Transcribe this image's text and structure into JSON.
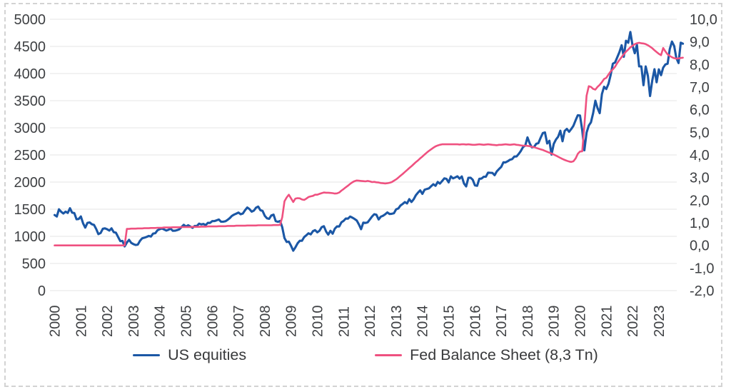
{
  "chart_data": {
    "type": "line",
    "title": "",
    "grid": true,
    "legend_position": "bottom",
    "x": {
      "unit": "month",
      "start_year": 2000,
      "tick_labels": [
        "2000",
        "2001",
        "2002",
        "2003",
        "2004",
        "2005",
        "2006",
        "2007",
        "2008",
        "2009",
        "2010",
        "2011",
        "2012",
        "2013",
        "2014",
        "2015",
        "2016",
        "2017",
        "2018",
        "2019",
        "2020",
        "2021",
        "2022",
        "2023"
      ]
    },
    "left_axis": {
      "min": 0,
      "max": 5000,
      "step": 500,
      "tick_labels": [
        "5000",
        "4500",
        "4000",
        "3500",
        "3000",
        "2500",
        "2000",
        "1500",
        "1000",
        "500",
        "0"
      ]
    },
    "right_axis": {
      "min": -2,
      "max": 10,
      "step": 1,
      "tick_labels": [
        "10,0",
        "9,0",
        "8,0",
        "7,0",
        "6,0",
        "5,0",
        "4,0",
        "3,0",
        "2,0",
        "1,0",
        "0,0",
        "-1,0",
        "-2,0"
      ]
    },
    "series": [
      {
        "name": "US equities",
        "axis": "left",
        "color": "#1b57a5",
        "values": [
          1394,
          1366,
          1499,
          1452,
          1421,
          1455,
          1431,
          1518,
          1437,
          1429,
          1315,
          1320,
          1366,
          1240,
          1160,
          1249,
          1256,
          1224,
          1211,
          1134,
          1041,
          1060,
          1139,
          1148,
          1130,
          1107,
          1147,
          1077,
          1067,
          990,
          912,
          916,
          815,
          886,
          936,
          880,
          856,
          841,
          848,
          917,
          964,
          975,
          990,
          1008,
          996,
          1051,
          1058,
          1112,
          1131,
          1145,
          1126,
          1107,
          1121,
          1141,
          1102,
          1104,
          1114,
          1130,
          1174,
          1212,
          1181,
          1204,
          1181,
          1157,
          1192,
          1191,
          1234,
          1220,
          1229,
          1207,
          1249,
          1248,
          1280,
          1281,
          1295,
          1311,
          1270,
          1270,
          1277,
          1304,
          1336,
          1378,
          1401,
          1418,
          1438,
          1407,
          1421,
          1482,
          1531,
          1503,
          1455,
          1474,
          1527,
          1549,
          1481,
          1468,
          1379,
          1331,
          1323,
          1386,
          1400,
          1280,
          1267,
          1283,
          1166,
          969,
          896,
          903,
          826,
          735,
          798,
          873,
          919,
          919,
          987,
          1021,
          1057,
          1036,
          1096,
          1115,
          1074,
          1104,
          1169,
          1187,
          1089,
          1031,
          1102,
          1049,
          1141,
          1183,
          1181,
          1258,
          1286,
          1327,
          1326,
          1364,
          1345,
          1321,
          1292,
          1219,
          1131,
          1253,
          1247,
          1258,
          1312,
          1366,
          1408,
          1398,
          1310,
          1362,
          1379,
          1407,
          1441,
          1412,
          1416,
          1426,
          1498,
          1515,
          1569,
          1598,
          1631,
          1606,
          1686,
          1633,
          1682,
          1757,
          1806,
          1848,
          1783,
          1859,
          1872,
          1884,
          1924,
          1960,
          1931,
          2003,
          1972,
          2018,
          2068,
          2059,
          1995,
          2105,
          2068,
          2086,
          2107,
          2063,
          2104,
          1972,
          1920,
          2079,
          2080,
          2044,
          1940,
          1932,
          2060,
          2065,
          2097,
          2099,
          2174,
          2171,
          2168,
          2126,
          2199,
          2239,
          2279,
          2364,
          2363,
          2384,
          2412,
          2423,
          2470,
          2472,
          2519,
          2575,
          2648,
          2674,
          2824,
          2714,
          2641,
          2648,
          2705,
          2718,
          2816,
          2902,
          2914,
          2712,
          2760,
          2507,
          2704,
          2784,
          2834,
          2946,
          2752,
          2942,
          2980,
          2926,
          2977,
          3038,
          3141,
          3231,
          3226,
          2954,
          2585,
          2912,
          3044,
          3100,
          3271,
          3500,
          3363,
          3270,
          3622,
          3756,
          3714,
          3811,
          3973,
          4181,
          4204,
          4298,
          4395,
          4523,
          4308,
          4605,
          4567,
          4766,
          4516,
          4374,
          4530,
          4132,
          4132,
          3785,
          4130,
          3955,
          3586,
          3872,
          4080,
          3840,
          4077,
          3970,
          4109,
          4169,
          4180,
          4450,
          4589,
          4508,
          4288,
          4194,
          4568,
          4550
        ]
      },
      {
        "name": "Fed Balance Sheet (8,3 Tn)",
        "axis": "right",
        "color": "#ef5180",
        "values": [
          0,
          0,
          0,
          0,
          0,
          0,
          0,
          0,
          0,
          0,
          0,
          0,
          0,
          0,
          0,
          0,
          0,
          0,
          0,
          0,
          0,
          0,
          0,
          0,
          0,
          0,
          0,
          0,
          0,
          0,
          0,
          0,
          0,
          0.73,
          0.73,
          0.74,
          0.74,
          0.74,
          0.75,
          0.75,
          0.75,
          0.76,
          0.76,
          0.76,
          0.77,
          0.77,
          0.77,
          0.78,
          0.78,
          0.78,
          0.79,
          0.79,
          0.79,
          0.79,
          0.8,
          0.8,
          0.8,
          0.8,
          0.81,
          0.81,
          0.81,
          0.81,
          0.81,
          0.82,
          0.82,
          0.82,
          0.82,
          0.83,
          0.83,
          0.83,
          0.84,
          0.84,
          0.84,
          0.84,
          0.84,
          0.85,
          0.85,
          0.85,
          0.85,
          0.86,
          0.86,
          0.86,
          0.86,
          0.87,
          0.87,
          0.87,
          0.87,
          0.87,
          0.88,
          0.88,
          0.88,
          0.88,
          0.88,
          0.89,
          0.89,
          0.89,
          0.89,
          0.89,
          0.89,
          0.89,
          0.9,
          0.9,
          0.9,
          0.91,
          1.25,
          1.95,
          2.12,
          2.24,
          2.08,
          1.92,
          2.07,
          2.09,
          2.08,
          2.03,
          2.01,
          2.07,
          2.14,
          2.17,
          2.19,
          2.24,
          2.24,
          2.28,
          2.31,
          2.34,
          2.33,
          2.33,
          2.32,
          2.31,
          2.29,
          2.3,
          2.34,
          2.42,
          2.49,
          2.57,
          2.64,
          2.72,
          2.79,
          2.84,
          2.87,
          2.86,
          2.85,
          2.84,
          2.83,
          2.85,
          2.83,
          2.8,
          2.81,
          2.79,
          2.78,
          2.76,
          2.75,
          2.74,
          2.75,
          2.77,
          2.8,
          2.86,
          2.92,
          3.0,
          3.08,
          3.16,
          3.25,
          3.33,
          3.42,
          3.5,
          3.59,
          3.68,
          3.76,
          3.85,
          3.93,
          4.02,
          4.1,
          4.18,
          4.25,
          4.32,
          4.38,
          4.42,
          4.45,
          4.47,
          4.47,
          4.47,
          4.47,
          4.47,
          4.47,
          4.47,
          4.47,
          4.46,
          4.47,
          4.47,
          4.46,
          4.47,
          4.46,
          4.45,
          4.45,
          4.46,
          4.47,
          4.46,
          4.45,
          4.46,
          4.47,
          4.46,
          4.45,
          4.44,
          4.43,
          4.45,
          4.45,
          4.46,
          4.47,
          4.46,
          4.45,
          4.46,
          4.47,
          4.45,
          4.44,
          4.42,
          4.41,
          4.41,
          4.4,
          4.39,
          4.36,
          4.34,
          4.31,
          4.28,
          4.25,
          4.22,
          4.18,
          4.14,
          4.1,
          4.06,
          4.02,
          3.97,
          3.92,
          3.87,
          3.82,
          3.78,
          3.74,
          3.71,
          3.69,
          3.72,
          3.85,
          4.05,
          4.15,
          4.16,
          5.3,
          6.62,
          7.04,
          7.01,
          6.92,
          6.89,
          7.01,
          7.1,
          7.22,
          7.36,
          7.41,
          7.56,
          7.69,
          7.79,
          7.9,
          8.06,
          8.2,
          8.33,
          8.45,
          8.57,
          8.66,
          8.76,
          8.83,
          8.9,
          8.94,
          8.96,
          8.94,
          8.93,
          8.9,
          8.85,
          8.79,
          8.72,
          8.63,
          8.55,
          8.47,
          8.41,
          8.73,
          8.58,
          8.45,
          8.38,
          8.32,
          8.28,
          8.26,
          8.27,
          8.29,
          8.3
        ]
      }
    ]
  },
  "colors": {
    "background": "#ffffff",
    "grid": "#ebebeb",
    "axis_text": "#3e4043",
    "legend_text": "#38393b",
    "frame_dash": "#d3d3d3"
  }
}
